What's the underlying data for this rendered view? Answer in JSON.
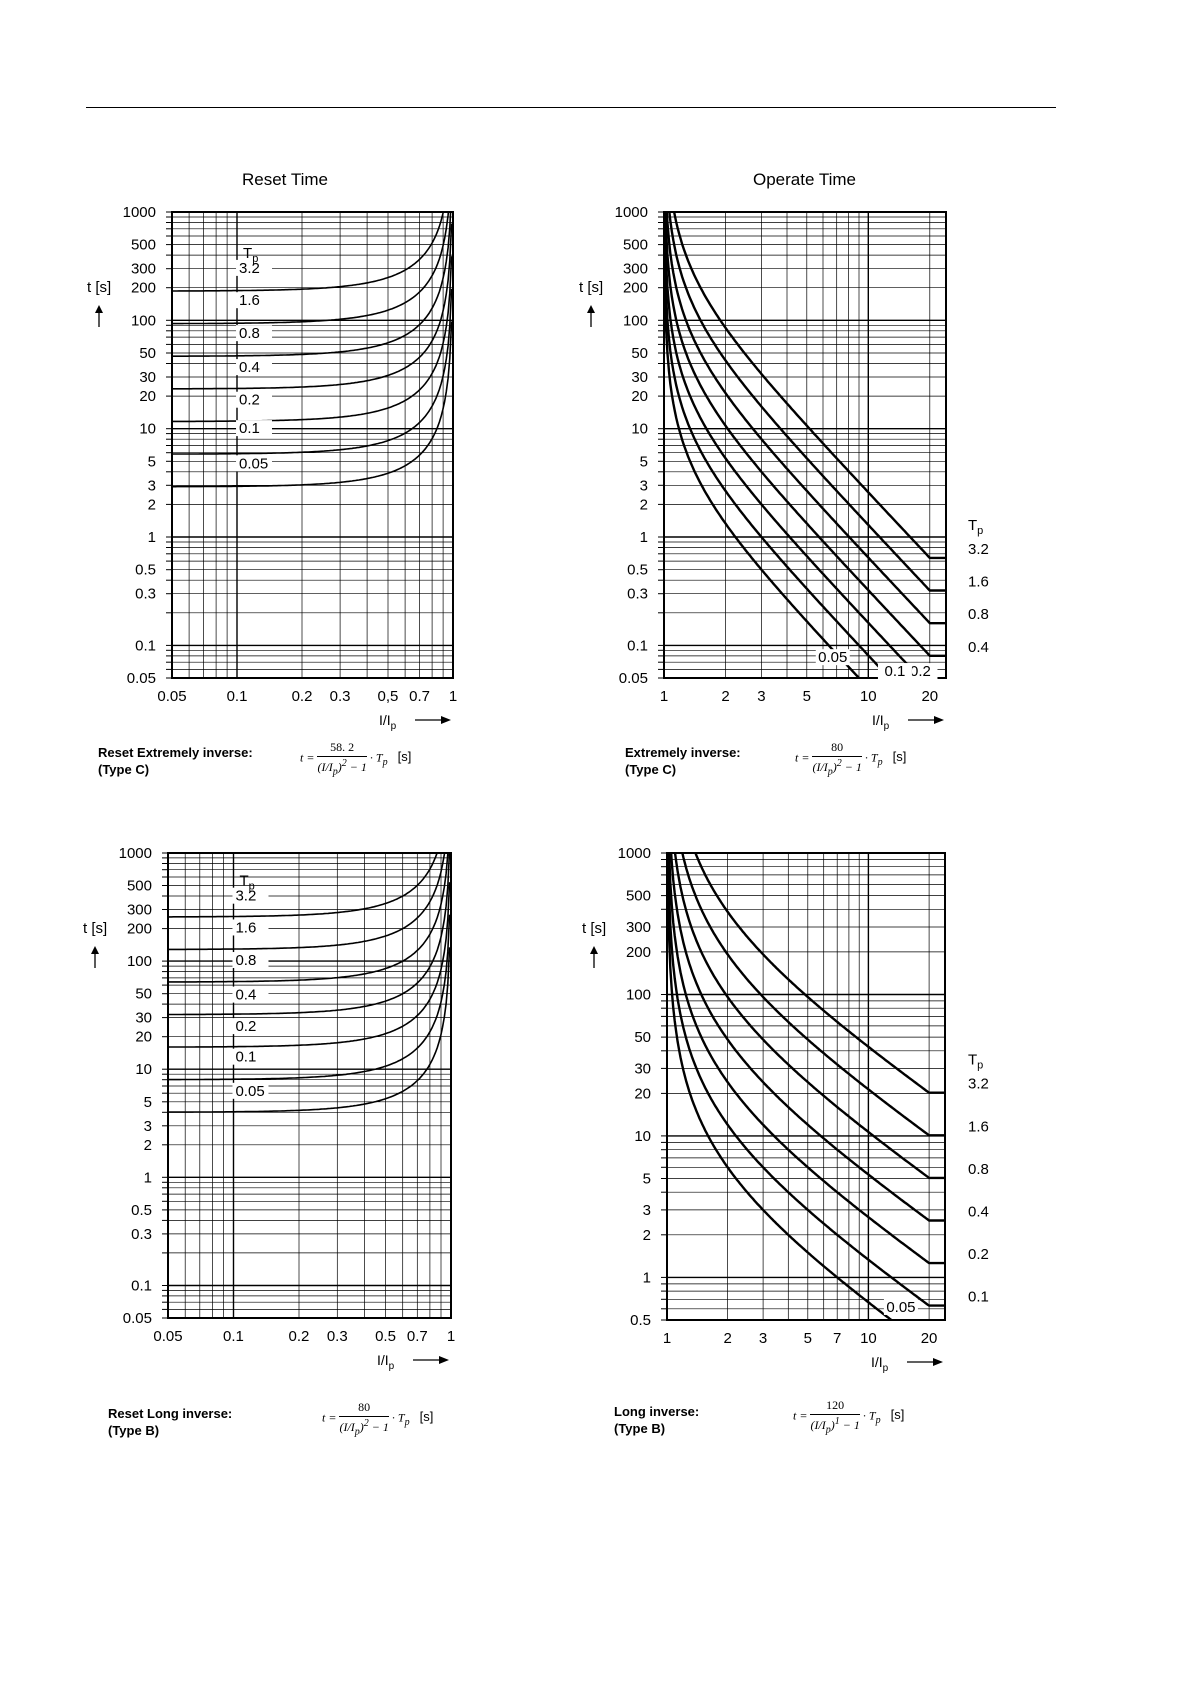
{
  "chart_data": [
    {
      "id": "c1",
      "type": "line",
      "title": "Reset Time",
      "kind": "reset",
      "constant": 58.2,
      "exponent": 2,
      "xlabel": "I/Ip",
      "ylabel": "t [s]",
      "x_scale": "log",
      "y_scale": "log",
      "xlim": [
        0.05,
        1
      ],
      "ylim": [
        0.05,
        1000
      ],
      "x_ticks": [
        {
          "v": 0.05,
          "l": "0.05"
        },
        {
          "v": 0.1,
          "l": "0.1"
        },
        {
          "v": 0.2,
          "l": "0.2"
        },
        {
          "v": 0.3,
          "l": "0.3"
        },
        {
          "v": 0.5,
          "l": "0,5"
        },
        {
          "v": 0.7,
          "l": "0.7"
        },
        {
          "v": 1,
          "l": "1"
        }
      ],
      "y_ticks": [
        {
          "v": 1000,
          "l": "1000"
        },
        {
          "v": 500,
          "l": "500"
        },
        {
          "v": 300,
          "l": "300"
        },
        {
          "v": 200,
          "l": "200"
        },
        {
          "v": 100,
          "l": "100"
        },
        {
          "v": 50,
          "l": "50"
        },
        {
          "v": 30,
          "l": "30"
        },
        {
          "v": 20,
          "l": "20"
        },
        {
          "v": 10,
          "l": "10"
        },
        {
          "v": 5,
          "l": "5"
        },
        {
          "v": 3,
          "l": "3"
        },
        {
          "v": 2,
          "l": "2"
        },
        {
          "v": 1,
          "l": "1"
        },
        {
          "v": 0.5,
          "l": "0.5"
        },
        {
          "v": 0.3,
          "l": "0.3"
        },
        {
          "v": 0.1,
          "l": "0.1"
        },
        {
          "v": 0.05,
          "l": "0.05"
        }
      ],
      "legend_title": "Tp",
      "series": [
        {
          "name": "3.2",
          "tp": 3.2,
          "label_x": 0.1,
          "label_y": 280
        },
        {
          "name": "1.6",
          "tp": 1.6,
          "label_x": 0.1,
          "label_y": 141
        },
        {
          "name": "0.8",
          "tp": 0.8,
          "label_x": 0.1,
          "label_y": 70
        },
        {
          "name": "0.4",
          "tp": 0.4,
          "label_x": 0.1,
          "label_y": 34
        },
        {
          "name": "0.2",
          "tp": 0.2,
          "label_x": 0.1,
          "label_y": 17
        },
        {
          "name": "0.1",
          "tp": 0.1,
          "label_x": 0.1,
          "label_y": 9.3
        },
        {
          "name": "0.05",
          "tp": 0.05,
          "label_x": 0.1,
          "label_y": 4.4
        }
      ],
      "formula_label": [
        "Reset Extremely inverse:",
        "(Type C)"
      ],
      "formula_num": "58. 2",
      "formula_unit": "[s]"
    },
    {
      "id": "c2",
      "type": "line",
      "title": "Operate Time",
      "kind": "operate",
      "constant": 80,
      "exponent": 2,
      "xlabel": "I/Ip",
      "ylabel": "t [s]",
      "x_scale": "log",
      "y_scale": "log",
      "xlim": [
        1,
        24
      ],
      "ylim": [
        0.05,
        1000
      ],
      "x_ticks": [
        {
          "v": 1,
          "l": "1"
        },
        {
          "v": 2,
          "l": "2"
        },
        {
          "v": 3,
          "l": "3"
        },
        {
          "v": 5,
          "l": "5"
        },
        {
          "v": 10,
          "l": "10"
        },
        {
          "v": 20,
          "l": "20"
        }
      ],
      "y_ticks": [
        {
          "v": 1000,
          "l": "1000"
        },
        {
          "v": 500,
          "l": "500"
        },
        {
          "v": 300,
          "l": "300"
        },
        {
          "v": 200,
          "l": "200"
        },
        {
          "v": 100,
          "l": "100"
        },
        {
          "v": 50,
          "l": "50"
        },
        {
          "v": 30,
          "l": "30"
        },
        {
          "v": 20,
          "l": "20"
        },
        {
          "v": 10,
          "l": "10"
        },
        {
          "v": 5,
          "l": "5"
        },
        {
          "v": 3,
          "l": "3"
        },
        {
          "v": 2,
          "l": "2"
        },
        {
          "v": 1,
          "l": "1"
        },
        {
          "v": 0.5,
          "l": "0.5"
        },
        {
          "v": 0.3,
          "l": "0.3"
        },
        {
          "v": 0.1,
          "l": "0.1"
        },
        {
          "v": 0.05,
          "l": "0.05"
        }
      ],
      "legend_title": "Tp",
      "series": [
        {
          "name": "3.2",
          "tp": 3.2
        },
        {
          "name": "1.6",
          "tp": 1.6
        },
        {
          "name": "0.8",
          "tp": 0.8
        },
        {
          "name": "0.4",
          "tp": 0.4
        },
        {
          "name": "0.2",
          "tp": 0.2,
          "curve_label_x": 18,
          "curve_label_y": 0.052
        },
        {
          "name": "0.1",
          "tp": 0.1,
          "curve_label_x": 13.5,
          "curve_label_y": 0.052
        },
        {
          "name": "0.05",
          "tp": 0.05,
          "curve_label_x": 6.7,
          "curve_label_y": 0.07
        }
      ],
      "formula_label": [
        "Extremely inverse:",
        "(Type C)"
      ],
      "formula_num": "80",
      "formula_unit": "[s]"
    },
    {
      "id": "c3",
      "type": "line",
      "kind": "reset",
      "constant": 80,
      "exponent": 2,
      "xlabel": "I/Ip",
      "ylabel": "t [s]",
      "x_scale": "log",
      "y_scale": "log",
      "xlim": [
        0.05,
        1
      ],
      "ylim": [
        0.05,
        1000
      ],
      "x_ticks": [
        {
          "v": 0.05,
          "l": "0.05"
        },
        {
          "v": 0.1,
          "l": "0.1"
        },
        {
          "v": 0.2,
          "l": "0.2"
        },
        {
          "v": 0.3,
          "l": "0.3"
        },
        {
          "v": 0.5,
          "l": "0.5"
        },
        {
          "v": 0.7,
          "l": "0.7"
        },
        {
          "v": 1,
          "l": "1"
        }
      ],
      "y_ticks": [
        {
          "v": 1000,
          "l": "1000"
        },
        {
          "v": 500,
          "l": "500"
        },
        {
          "v": 300,
          "l": "300"
        },
        {
          "v": 200,
          "l": "200"
        },
        {
          "v": 100,
          "l": "100"
        },
        {
          "v": 50,
          "l": "50"
        },
        {
          "v": 30,
          "l": "30"
        },
        {
          "v": 20,
          "l": "20"
        },
        {
          "v": 10,
          "l": "10"
        },
        {
          "v": 5,
          "l": "5"
        },
        {
          "v": 3,
          "l": "3"
        },
        {
          "v": 2,
          "l": "2"
        },
        {
          "v": 1,
          "l": "1"
        },
        {
          "v": 0.5,
          "l": "0.5"
        },
        {
          "v": 0.3,
          "l": "0.3"
        },
        {
          "v": 0.1,
          "l": "0.1"
        },
        {
          "v": 0.05,
          "l": "0.05"
        }
      ],
      "legend_title": "Tp",
      "series": [
        {
          "name": "3.2",
          "tp": 3.2,
          "label_x": 0.1,
          "label_y": 370
        },
        {
          "name": "1.6",
          "tp": 1.6,
          "label_x": 0.1,
          "label_y": 188
        },
        {
          "name": "0.8",
          "tp": 0.8,
          "label_x": 0.1,
          "label_y": 94
        },
        {
          "name": "0.4",
          "tp": 0.4,
          "label_x": 0.1,
          "label_y": 45
        },
        {
          "name": "0.2",
          "tp": 0.2,
          "label_x": 0.1,
          "label_y": 23
        },
        {
          "name": "0.1",
          "tp": 0.1,
          "label_x": 0.1,
          "label_y": 12
        },
        {
          "name": "0.05",
          "tp": 0.05,
          "label_x": 0.1,
          "label_y": 5.8
        }
      ],
      "formula_label": [
        "Reset Long inverse:",
        "(Type B)"
      ],
      "formula_num": "80",
      "formula_unit": "[s]"
    },
    {
      "id": "c4",
      "type": "line",
      "kind": "operate",
      "constant": 120,
      "exponent": 1,
      "xlabel": "I/Ip",
      "ylabel": "t [s]",
      "x_scale": "log",
      "y_scale": "log",
      "xlim": [
        1,
        24
      ],
      "ylim": [
        0.5,
        1000
      ],
      "x_ticks": [
        {
          "v": 1,
          "l": "1"
        },
        {
          "v": 2,
          "l": "2"
        },
        {
          "v": 3,
          "l": "3"
        },
        {
          "v": 5,
          "l": "5"
        },
        {
          "v": 7,
          "l": "7"
        },
        {
          "v": 10,
          "l": "10"
        },
        {
          "v": 20,
          "l": "20"
        }
      ],
      "y_ticks": [
        {
          "v": 1000,
          "l": "1000"
        },
        {
          "v": 500,
          "l": "500"
        },
        {
          "v": 300,
          "l": "300"
        },
        {
          "v": 200,
          "l": "200"
        },
        {
          "v": 100,
          "l": "100"
        },
        {
          "v": 50,
          "l": "50"
        },
        {
          "v": 30,
          "l": "30"
        },
        {
          "v": 20,
          "l": "20"
        },
        {
          "v": 10,
          "l": "10"
        },
        {
          "v": 5,
          "l": "5"
        },
        {
          "v": 3,
          "l": "3"
        },
        {
          "v": 2,
          "l": "2"
        },
        {
          "v": 1,
          "l": "1"
        },
        {
          "v": 0.5,
          "l": "0.5"
        }
      ],
      "legend_title": "Tp",
      "series": [
        {
          "name": "3.2",
          "tp": 3.2
        },
        {
          "name": "1.6",
          "tp": 1.6
        },
        {
          "name": "0.8",
          "tp": 0.8
        },
        {
          "name": "0.4",
          "tp": 0.4
        },
        {
          "name": "0.2",
          "tp": 0.2
        },
        {
          "name": "0.1",
          "tp": 0.1
        },
        {
          "name": "0.05",
          "tp": 0.05,
          "curve_label_x": 14.5,
          "curve_label_y": 0.57
        }
      ],
      "formula_label": [
        "Long inverse:",
        "(Type B)"
      ],
      "formula_num": "120",
      "formula_unit": "[s]"
    }
  ]
}
